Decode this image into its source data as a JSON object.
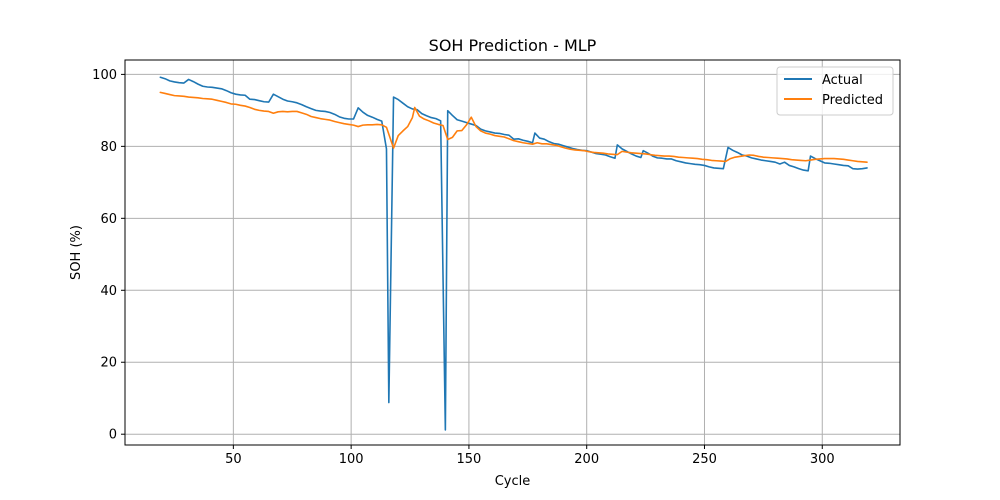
{
  "chart_data": {
    "type": "line",
    "title": "SOH Prediction - MLP",
    "xlabel": "Cycle",
    "ylabel": "SOH (%)",
    "xlim": [
      4,
      333
    ],
    "ylim": [
      -3,
      104
    ],
    "xticks": [
      50,
      100,
      150,
      200,
      250,
      300
    ],
    "yticks": [
      0,
      20,
      40,
      60,
      80,
      100
    ],
    "grid": true,
    "legend_position": "top-right",
    "series": [
      {
        "name": "Actual",
        "color": "#1f77b4",
        "points": [
          [
            19,
            99.2
          ],
          [
            21,
            98.8
          ],
          [
            23,
            98.2
          ],
          [
            25,
            97.9
          ],
          [
            27,
            97.7
          ],
          [
            29,
            97.6
          ],
          [
            31,
            98.6
          ],
          [
            33,
            98.0
          ],
          [
            35,
            97.3
          ],
          [
            37,
            96.7
          ],
          [
            39,
            96.5
          ],
          [
            41,
            96.4
          ],
          [
            43,
            96.2
          ],
          [
            45,
            96.0
          ],
          [
            47,
            95.5
          ],
          [
            49,
            94.9
          ],
          [
            51,
            94.5
          ],
          [
            53,
            94.3
          ],
          [
            55,
            94.2
          ],
          [
            57,
            93.1
          ],
          [
            59,
            93.0
          ],
          [
            61,
            92.7
          ],
          [
            63,
            92.4
          ],
          [
            65,
            92.3
          ],
          [
            67,
            94.5
          ],
          [
            69,
            93.8
          ],
          [
            71,
            93.1
          ],
          [
            73,
            92.6
          ],
          [
            75,
            92.4
          ],
          [
            77,
            92.1
          ],
          [
            79,
            91.6
          ],
          [
            81,
            91.0
          ],
          [
            83,
            90.5
          ],
          [
            85,
            90.0
          ],
          [
            87,
            89.8
          ],
          [
            89,
            89.7
          ],
          [
            91,
            89.4
          ],
          [
            93,
            88.9
          ],
          [
            95,
            88.2
          ],
          [
            97,
            87.8
          ],
          [
            99,
            87.6
          ],
          [
            101,
            87.6
          ],
          [
            103,
            90.7
          ],
          [
            105,
            89.5
          ],
          [
            107,
            88.6
          ],
          [
            109,
            88.1
          ],
          [
            111,
            87.5
          ],
          [
            113,
            87.0
          ],
          [
            115,
            79.3
          ],
          [
            116,
            8.8
          ],
          [
            118,
            93.7
          ],
          [
            120,
            93.0
          ],
          [
            122,
            92.0
          ],
          [
            124,
            91.0
          ],
          [
            126,
            90.4
          ],
          [
            128,
            90.2
          ],
          [
            130,
            89.1
          ],
          [
            132,
            88.5
          ],
          [
            134,
            88.0
          ],
          [
            136,
            87.7
          ],
          [
            138,
            87.1
          ],
          [
            140,
            1.2
          ],
          [
            141,
            89.9
          ],
          [
            143,
            88.6
          ],
          [
            145,
            87.4
          ],
          [
            147,
            87.0
          ],
          [
            149,
            86.6
          ],
          [
            151,
            86.2
          ],
          [
            153,
            85.8
          ],
          [
            155,
            84.8
          ],
          [
            157,
            84.3
          ],
          [
            159,
            84.0
          ],
          [
            161,
            83.7
          ],
          [
            163,
            83.6
          ],
          [
            165,
            83.3
          ],
          [
            167,
            83.1
          ],
          [
            169,
            82.0
          ],
          [
            171,
            82.1
          ],
          [
            173,
            81.7
          ],
          [
            175,
            81.4
          ],
          [
            177,
            81.0
          ],
          [
            178,
            83.7
          ],
          [
            180,
            82.3
          ],
          [
            182,
            82.0
          ],
          [
            184,
            81.3
          ],
          [
            186,
            80.8
          ],
          [
            188,
            80.6
          ],
          [
            190,
            80.2
          ],
          [
            192,
            79.8
          ],
          [
            194,
            79.4
          ],
          [
            196,
            79.1
          ],
          [
            198,
            78.9
          ],
          [
            200,
            78.8
          ],
          [
            202,
            78.4
          ],
          [
            204,
            78.0
          ],
          [
            206,
            77.8
          ],
          [
            208,
            77.6
          ],
          [
            210,
            77.1
          ],
          [
            212,
            76.7
          ],
          [
            213,
            80.4
          ],
          [
            215,
            79.3
          ],
          [
            217,
            78.6
          ],
          [
            219,
            77.9
          ],
          [
            221,
            77.3
          ],
          [
            223,
            76.9
          ],
          [
            224,
            78.8
          ],
          [
            226,
            78.1
          ],
          [
            228,
            77.3
          ],
          [
            230,
            76.8
          ],
          [
            232,
            76.7
          ],
          [
            234,
            76.5
          ],
          [
            236,
            76.5
          ],
          [
            238,
            76.0
          ],
          [
            240,
            75.7
          ],
          [
            242,
            75.4
          ],
          [
            244,
            75.2
          ],
          [
            246,
            75.0
          ],
          [
            248,
            74.9
          ],
          [
            250,
            74.7
          ],
          [
            252,
            74.3
          ],
          [
            254,
            74.0
          ],
          [
            256,
            73.9
          ],
          [
            258,
            73.8
          ],
          [
            260,
            79.7
          ],
          [
            262,
            78.9
          ],
          [
            264,
            78.3
          ],
          [
            266,
            77.6
          ],
          [
            268,
            77.3
          ],
          [
            270,
            76.8
          ],
          [
            272,
            76.5
          ],
          [
            274,
            76.2
          ],
          [
            276,
            76.0
          ],
          [
            278,
            75.8
          ],
          [
            280,
            75.6
          ],
          [
            282,
            75.1
          ],
          [
            284,
            75.6
          ],
          [
            286,
            74.7
          ],
          [
            288,
            74.3
          ],
          [
            290,
            73.8
          ],
          [
            292,
            73.4
          ],
          [
            294,
            73.2
          ],
          [
            295,
            77.3
          ],
          [
            297,
            76.6
          ],
          [
            299,
            76.0
          ],
          [
            301,
            75.4
          ],
          [
            303,
            75.3
          ],
          [
            305,
            75.1
          ],
          [
            307,
            74.9
          ],
          [
            309,
            74.7
          ],
          [
            311,
            74.6
          ],
          [
            313,
            73.8
          ],
          [
            315,
            73.7
          ],
          [
            317,
            73.8
          ],
          [
            319,
            74.0
          ]
        ]
      },
      {
        "name": "Predicted",
        "color": "#ff7f0e",
        "points": [
          [
            19,
            95.0
          ],
          [
            21,
            94.7
          ],
          [
            23,
            94.4
          ],
          [
            25,
            94.1
          ],
          [
            27,
            94.0
          ],
          [
            29,
            93.9
          ],
          [
            31,
            93.7
          ],
          [
            33,
            93.6
          ],
          [
            35,
            93.5
          ],
          [
            37,
            93.3
          ],
          [
            39,
            93.2
          ],
          [
            41,
            93.1
          ],
          [
            43,
            92.8
          ],
          [
            45,
            92.5
          ],
          [
            47,
            92.2
          ],
          [
            49,
            91.8
          ],
          [
            51,
            91.7
          ],
          [
            53,
            91.4
          ],
          [
            55,
            91.2
          ],
          [
            57,
            90.8
          ],
          [
            59,
            90.3
          ],
          [
            61,
            90.0
          ],
          [
            63,
            89.8
          ],
          [
            65,
            89.7
          ],
          [
            67,
            89.2
          ],
          [
            69,
            89.6
          ],
          [
            71,
            89.7
          ],
          [
            73,
            89.6
          ],
          [
            75,
            89.7
          ],
          [
            77,
            89.7
          ],
          [
            79,
            89.3
          ],
          [
            81,
            88.9
          ],
          [
            83,
            88.3
          ],
          [
            85,
            88.0
          ],
          [
            87,
            87.7
          ],
          [
            89,
            87.5
          ],
          [
            91,
            87.3
          ],
          [
            93,
            86.9
          ],
          [
            95,
            86.6
          ],
          [
            97,
            86.3
          ],
          [
            99,
            86.1
          ],
          [
            101,
            85.9
          ],
          [
            103,
            85.5
          ],
          [
            105,
            85.9
          ],
          [
            107,
            86.0
          ],
          [
            109,
            86.0
          ],
          [
            111,
            86.1
          ],
          [
            113,
            86.0
          ],
          [
            115,
            85.3
          ],
          [
            118,
            79.5
          ],
          [
            120,
            83.0
          ],
          [
            122,
            84.3
          ],
          [
            124,
            85.5
          ],
          [
            126,
            88.0
          ],
          [
            127,
            90.8
          ],
          [
            129,
            88.4
          ],
          [
            131,
            87.6
          ],
          [
            133,
            87.1
          ],
          [
            135,
            86.5
          ],
          [
            137,
            86.1
          ],
          [
            139,
            85.8
          ],
          [
            141,
            81.9
          ],
          [
            143,
            82.5
          ],
          [
            145,
            84.3
          ],
          [
            147,
            84.4
          ],
          [
            149,
            86.0
          ],
          [
            151,
            88.1
          ],
          [
            153,
            85.5
          ],
          [
            155,
            84.3
          ],
          [
            157,
            83.7
          ],
          [
            159,
            83.4
          ],
          [
            161,
            83.0
          ],
          [
            163,
            82.8
          ],
          [
            165,
            82.6
          ],
          [
            167,
            82.1
          ],
          [
            169,
            81.6
          ],
          [
            171,
            81.3
          ],
          [
            173,
            81.0
          ],
          [
            175,
            80.8
          ],
          [
            177,
            80.6
          ],
          [
            179,
            81.0
          ],
          [
            181,
            80.7
          ],
          [
            183,
            80.7
          ],
          [
            185,
            80.5
          ],
          [
            187,
            80.3
          ],
          [
            189,
            79.9
          ],
          [
            191,
            79.5
          ],
          [
            193,
            79.2
          ],
          [
            195,
            79.0
          ],
          [
            197,
            78.9
          ],
          [
            199,
            78.8
          ],
          [
            201,
            78.5
          ],
          [
            203,
            78.3
          ],
          [
            205,
            78.2
          ],
          [
            207,
            78.1
          ],
          [
            209,
            77.9
          ],
          [
            211,
            77.8
          ],
          [
            213,
            77.7
          ],
          [
            215,
            78.6
          ],
          [
            217,
            78.4
          ],
          [
            219,
            78.2
          ],
          [
            221,
            78.1
          ],
          [
            223,
            78.0
          ],
          [
            225,
            77.9
          ],
          [
            227,
            77.7
          ],
          [
            229,
            77.5
          ],
          [
            231,
            77.4
          ],
          [
            233,
            77.3
          ],
          [
            235,
            77.3
          ],
          [
            237,
            77.2
          ],
          [
            239,
            77.0
          ],
          [
            241,
            76.9
          ],
          [
            243,
            76.8
          ],
          [
            245,
            76.7
          ],
          [
            247,
            76.6
          ],
          [
            249,
            76.4
          ],
          [
            251,
            76.3
          ],
          [
            253,
            76.1
          ],
          [
            255,
            76.0
          ],
          [
            257,
            75.9
          ],
          [
            259,
            75.8
          ],
          [
            261,
            76.6
          ],
          [
            263,
            77.0
          ],
          [
            265,
            77.2
          ],
          [
            267,
            77.4
          ],
          [
            269,
            77.6
          ],
          [
            271,
            77.5
          ],
          [
            273,
            77.2
          ],
          [
            275,
            77.0
          ],
          [
            277,
            76.9
          ],
          [
            279,
            76.8
          ],
          [
            281,
            76.7
          ],
          [
            283,
            76.6
          ],
          [
            285,
            76.5
          ],
          [
            287,
            76.3
          ],
          [
            289,
            76.2
          ],
          [
            291,
            76.1
          ],
          [
            293,
            76.0
          ],
          [
            295,
            76.2
          ],
          [
            297,
            76.4
          ],
          [
            299,
            76.5
          ],
          [
            301,
            76.6
          ],
          [
            303,
            76.6
          ],
          [
            305,
            76.6
          ],
          [
            307,
            76.5
          ],
          [
            309,
            76.4
          ],
          [
            311,
            76.2
          ],
          [
            313,
            76.0
          ],
          [
            315,
            75.8
          ],
          [
            317,
            75.7
          ],
          [
            319,
            75.6
          ]
        ]
      }
    ]
  }
}
